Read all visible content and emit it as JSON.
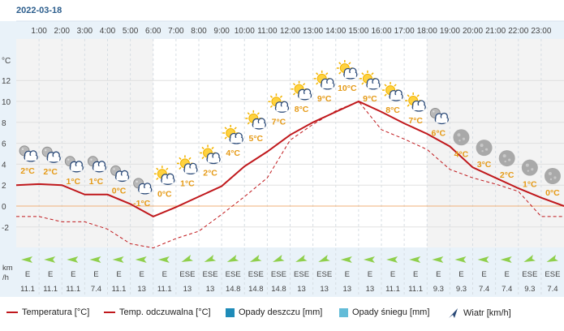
{
  "chart_data": {
    "type": "line",
    "title": "2022-03-18",
    "ylabel": "°C",
    "ylim": [
      -4,
      14
    ],
    "yticks": [
      -2,
      0,
      2,
      4,
      6,
      8,
      10,
      12
    ],
    "x_ticks": [
      "1:00",
      "2:00",
      "3:00",
      "4:00",
      "5:00",
      "6:00",
      "7:00",
      "8:00",
      "9:00",
      "10:00",
      "11:00",
      "12:00",
      "13:00",
      "14:00",
      "15:00",
      "16:00",
      "17:00",
      "18:00",
      "19:00",
      "20:00",
      "21:00",
      "22:00",
      "23:00"
    ],
    "hours": [
      0,
      1,
      2,
      3,
      4,
      5,
      6,
      7,
      8,
      9,
      10,
      11,
      12,
      13,
      14,
      15,
      16,
      17,
      18,
      19,
      20,
      21,
      22,
      23,
      24
    ],
    "temperature": [
      2.0,
      2.1,
      2.0,
      1.1,
      1.1,
      0.2,
      -1.0,
      -0.1,
      0.9,
      1.9,
      3.8,
      5.2,
      6.8,
      8.0,
      9.0,
      10.0,
      9.0,
      7.9,
      6.9,
      5.7,
      3.7,
      2.7,
      1.7,
      0.8,
      0.0
    ],
    "feels_like": [
      -1.0,
      -1.0,
      -1.5,
      -1.5,
      -2.2,
      -3.6,
      -4.0,
      -3.1,
      -2.4,
      -0.8,
      0.9,
      2.7,
      6.3,
      7.8,
      9.1,
      10.0,
      7.3,
      6.4,
      5.4,
      3.5,
      2.7,
      2.1,
      1.4,
      -1.0,
      -1.0
    ],
    "hourly": [
      {
        "label": "2°C",
        "icon": "cloudy-night-icon"
      },
      {
        "label": "2°C",
        "icon": "cloudy-night-icon"
      },
      {
        "label": "1°C",
        "icon": "cloudy-night-icon"
      },
      {
        "label": "1°C",
        "icon": "cloudy-night-icon"
      },
      {
        "label": "0°C",
        "icon": "cloudy-night-icon"
      },
      {
        "label": "-1°C",
        "icon": "cloudy-night-icon"
      },
      {
        "label": "0°C",
        "icon": "partly-cloudy-icon"
      },
      {
        "label": "1°C",
        "icon": "partly-cloudy-icon"
      },
      {
        "label": "2°C",
        "icon": "partly-cloudy-icon"
      },
      {
        "label": "4°C",
        "icon": "partly-cloudy-icon"
      },
      {
        "label": "5°C",
        "icon": "partly-cloudy-icon"
      },
      {
        "label": "7°C",
        "icon": "partly-cloudy-icon"
      },
      {
        "label": "8°C",
        "icon": "partly-cloudy-icon"
      },
      {
        "label": "9°C",
        "icon": "partly-cloudy-icon"
      },
      {
        "label": "10°C",
        "icon": "partly-cloudy-icon"
      },
      {
        "label": "9°C",
        "icon": "partly-cloudy-icon"
      },
      {
        "label": "8°C",
        "icon": "partly-cloudy-icon"
      },
      {
        "label": "7°C",
        "icon": "partly-cloudy-icon"
      },
      {
        "label": "6°C",
        "icon": "cloudy-night-icon"
      },
      {
        "label": "4°C",
        "icon": "moon-icon"
      },
      {
        "label": "3°C",
        "icon": "moon-icon"
      },
      {
        "label": "2°C",
        "icon": "moon-icon"
      },
      {
        "label": "1°C",
        "icon": "moon-icon"
      },
      {
        "label": "0°C",
        "icon": "moon-icon"
      }
    ],
    "wind_unit": "km\n/h",
    "wind": [
      {
        "dir": "E",
        "speed": "11.1"
      },
      {
        "dir": "E",
        "speed": "11.1"
      },
      {
        "dir": "E",
        "speed": "11.1"
      },
      {
        "dir": "E",
        "speed": "7.4"
      },
      {
        "dir": "E",
        "speed": "11.1"
      },
      {
        "dir": "E",
        "speed": "13"
      },
      {
        "dir": "E",
        "speed": "11.1"
      },
      {
        "dir": "ESE",
        "speed": "13"
      },
      {
        "dir": "ESE",
        "speed": "13"
      },
      {
        "dir": "ESE",
        "speed": "14.8"
      },
      {
        "dir": "ESE",
        "speed": "14.8"
      },
      {
        "dir": "ESE",
        "speed": "14.8"
      },
      {
        "dir": "ESE",
        "speed": "13"
      },
      {
        "dir": "ESE",
        "speed": "13"
      },
      {
        "dir": "E",
        "speed": "13"
      },
      {
        "dir": "E",
        "speed": "13"
      },
      {
        "dir": "E",
        "speed": "11.1"
      },
      {
        "dir": "E",
        "speed": "11.1"
      },
      {
        "dir": "E",
        "speed": "9.3"
      },
      {
        "dir": "E",
        "speed": "9.3"
      },
      {
        "dir": "E",
        "speed": "7.4"
      },
      {
        "dir": "E",
        "speed": "7.4"
      },
      {
        "dir": "ESE",
        "speed": "9.3"
      },
      {
        "dir": "ESE",
        "speed": "7.4"
      }
    ],
    "legend": [
      {
        "name": "Temperatura [°C]",
        "kind": "line",
        "color": "#c0181c"
      },
      {
        "name": "Temp. odczuwalna [°C]",
        "kind": "line",
        "color": "#c0181c"
      },
      {
        "name": "Opady deszczu [mm]",
        "kind": "box",
        "color": "#1e8bb8"
      },
      {
        "name": "Opady śniegu [mm]",
        "kind": "box",
        "color": "#63bcd8"
      },
      {
        "name": "Wiatr [km/h]",
        "kind": "wind",
        "color": "#2b4a78"
      }
    ]
  }
}
